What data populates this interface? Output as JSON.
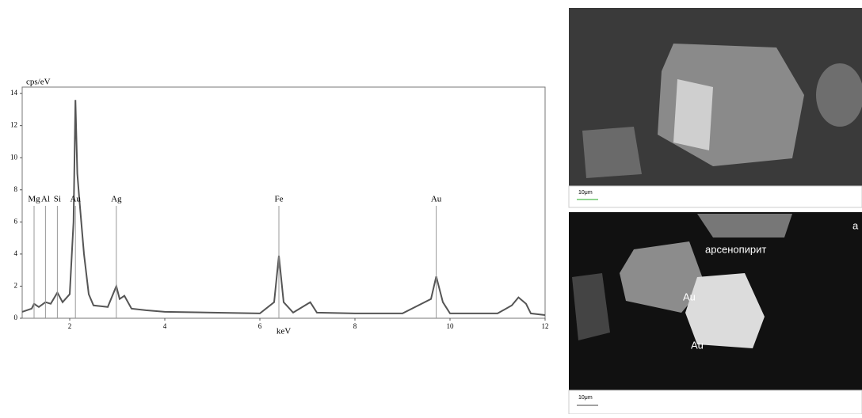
{
  "chart_data": {
    "type": "line",
    "y_label": "cps/eV",
    "x_label": "keV",
    "x": [
      1.0,
      1.2,
      1.25,
      1.35,
      1.49,
      1.6,
      1.74,
      1.85,
      2.0,
      2.08,
      2.12,
      2.16,
      2.2,
      2.3,
      2.4,
      2.5,
      2.8,
      2.98,
      3.05,
      3.15,
      3.3,
      3.6,
      4.0,
      5.0,
      6.0,
      6.3,
      6.4,
      6.5,
      6.7,
      7.06,
      7.2,
      8.0,
      9.0,
      9.6,
      9.71,
      9.85,
      10.0,
      11.0,
      11.3,
      11.44,
      11.6,
      11.7,
      12.0
    ],
    "y": [
      0.4,
      0.6,
      0.9,
      0.7,
      1.0,
      0.9,
      1.6,
      1.0,
      1.5,
      6.0,
      13.6,
      9.0,
      7.5,
      4.0,
      1.5,
      0.8,
      0.7,
      2.0,
      1.2,
      1.4,
      0.6,
      0.5,
      0.4,
      0.35,
      0.3,
      1.0,
      3.9,
      1.0,
      0.35,
      1.0,
      0.35,
      0.3,
      0.3,
      1.2,
      2.6,
      1.0,
      0.3,
      0.3,
      0.8,
      1.3,
      0.9,
      0.3,
      0.2
    ],
    "color": "#555555",
    "xlim": [
      1,
      12
    ],
    "xticks": [
      2,
      4,
      6,
      8,
      10,
      12
    ],
    "ylim": [
      0,
      14.4
    ],
    "yticks": [
      0,
      2,
      4,
      6,
      8,
      10,
      12,
      14
    ],
    "annotations": [
      {
        "text": "Mg",
        "x": 1.25
      },
      {
        "text": "Al",
        "x": 1.49
      },
      {
        "text": "Si",
        "x": 1.74
      },
      {
        "text": "Au",
        "x": 2.12
      },
      {
        "text": "Ag",
        "x": 2.98
      },
      {
        "text": "Fe",
        "x": 6.4
      },
      {
        "text": "Au",
        "x": 9.71
      }
    ]
  },
  "images": [
    {
      "scale_label": "10μm"
    },
    {
      "scale_label": "10μm",
      "labels": [
        "арсенопирит",
        "Au",
        "Au",
        "a"
      ]
    }
  ]
}
